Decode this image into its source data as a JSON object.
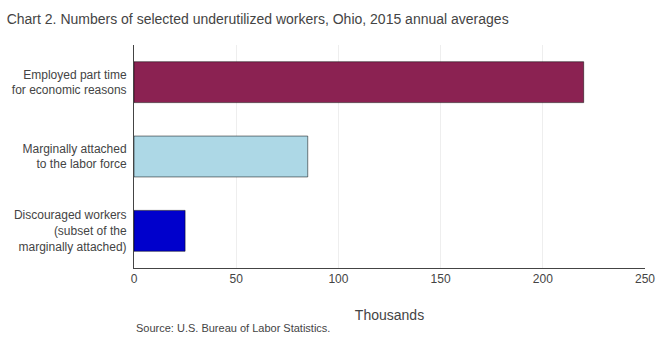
{
  "chart_data": {
    "type": "bar",
    "orientation": "horizontal",
    "title": "Chart 2. Numbers of selected underutilized workers, Ohio, 2015 annual averages",
    "categories": [
      "Discouraged workers\n(subset of the\nmarginally attached)",
      "Marginally attached\nto the labor force",
      "Employed part time\nfor economic reasons"
    ],
    "values": [
      25,
      85,
      220
    ],
    "colors": [
      "#0000cc",
      "#add8e6",
      "#8b2252"
    ],
    "xlabel": "Thousands",
    "xlim": [
      0,
      250
    ],
    "xticks": [
      0,
      50,
      100,
      150,
      200,
      250
    ],
    "grid": true,
    "annotations": [
      "Source: U.S. Bureau of Labor Statistics."
    ]
  }
}
